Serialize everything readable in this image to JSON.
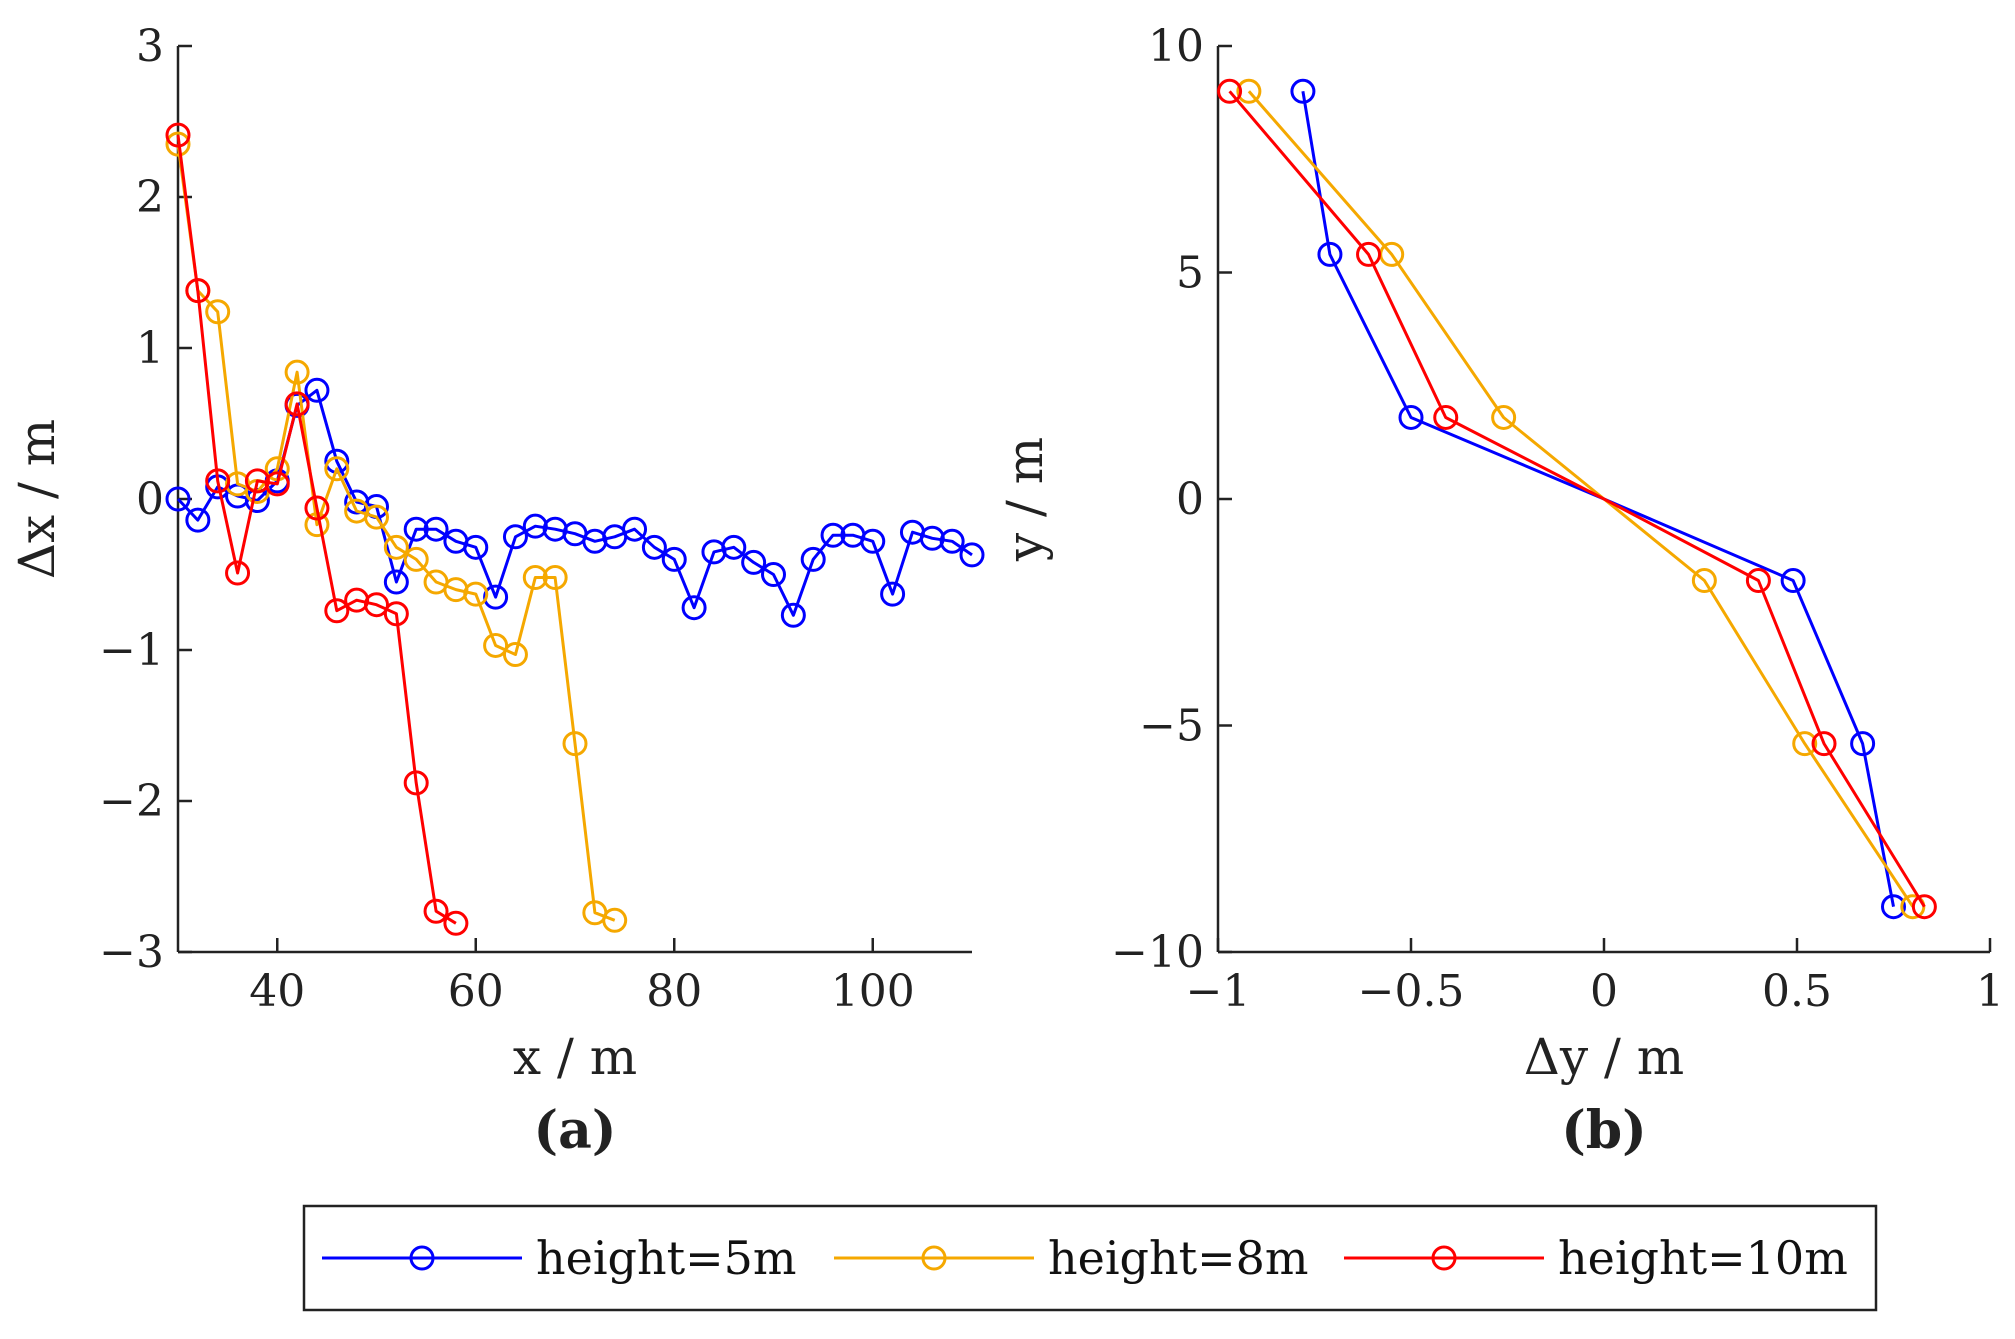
{
  "chart_data": [
    {
      "type": "line",
      "panel_label": "(a)",
      "xlabel": "x / m",
      "ylabel": "Δx / m",
      "xlim": [
        30,
        110
      ],
      "ylim": [
        -3,
        3
      ],
      "xticks": [
        40,
        60,
        80,
        100
      ],
      "yticks": [
        -3,
        -2,
        -1,
        0,
        1,
        2,
        3
      ],
      "xtick_labels": [
        "40",
        "60",
        "80",
        "100"
      ],
      "ytick_labels": [
        "−3",
        "−2",
        "−1",
        "0",
        "1",
        "2",
        "3"
      ],
      "series": [
        {
          "name": "height=5m",
          "color": "#0000ff",
          "x": [
            30,
            32,
            34,
            36,
            38,
            40,
            42,
            44,
            46,
            48,
            50,
            52,
            54,
            56,
            58,
            60,
            62,
            64,
            66,
            68,
            70,
            72,
            74,
            76,
            78,
            80,
            82,
            84,
            86,
            88,
            90,
            92,
            94,
            96,
            98,
            100,
            102,
            104,
            106,
            108,
            110
          ],
          "y": [
            0.0,
            -0.14,
            0.08,
            0.02,
            -0.01,
            0.12,
            0.62,
            0.72,
            0.25,
            -0.02,
            -0.05,
            -0.55,
            -0.2,
            -0.2,
            -0.28,
            -0.32,
            -0.65,
            -0.25,
            -0.18,
            -0.2,
            -0.23,
            -0.28,
            -0.25,
            -0.2,
            -0.32,
            -0.4,
            -0.72,
            -0.35,
            -0.32,
            -0.42,
            -0.5,
            -0.77,
            -0.4,
            -0.24,
            -0.24,
            -0.28,
            -0.63,
            -0.22,
            -0.26,
            -0.28,
            -0.37
          ]
        },
        {
          "name": "height=8m",
          "color": "#f5a800",
          "x": [
            30,
            32,
            34,
            36,
            38,
            40,
            42,
            44,
            46,
            48,
            50,
            52,
            54,
            56,
            58,
            60,
            62,
            64,
            66,
            68,
            70,
            72,
            74
          ],
          "y": [
            2.35,
            1.38,
            1.24,
            0.1,
            0.05,
            0.2,
            0.84,
            -0.17,
            0.2,
            -0.08,
            -0.12,
            -0.32,
            -0.4,
            -0.55,
            -0.6,
            -0.63,
            -0.97,
            -1.03,
            -0.52,
            -0.52,
            -1.62,
            -2.74,
            -2.79
          ]
        },
        {
          "name": "height=10m",
          "color": "#ff0000",
          "x": [
            30,
            32,
            34,
            36,
            38,
            40,
            42,
            44,
            46,
            48,
            50,
            52,
            54,
            56,
            58
          ],
          "y": [
            2.41,
            1.38,
            0.12,
            -0.49,
            0.12,
            0.1,
            0.63,
            -0.06,
            -0.74,
            -0.67,
            -0.7,
            -0.76,
            -1.88,
            -2.73,
            -2.81
          ]
        }
      ]
    },
    {
      "type": "line",
      "panel_label": "(b)",
      "xlabel": "Δy / m",
      "ylabel": "y / m",
      "xlim": [
        -1,
        1
      ],
      "ylim": [
        -10,
        10
      ],
      "xticks": [
        -1,
        -0.5,
        0,
        0.5,
        1
      ],
      "yticks": [
        -10,
        -5,
        0,
        5,
        10
      ],
      "xtick_labels": [
        "−1",
        "−0.5",
        "0",
        "0.5",
        "1"
      ],
      "ytick_labels": [
        "−10",
        "−5",
        "0",
        "5",
        "10"
      ],
      "series": [
        {
          "name": "height=5m",
          "color": "#0000ff",
          "x": [
            -0.78,
            -0.71,
            -0.5,
            0.0,
            0.49,
            0.67,
            0.75
          ],
          "y": [
            9.0,
            5.4,
            1.8,
            0.0,
            -1.8,
            -5.4,
            -9.0
          ],
          "markers": [
            true,
            true,
            true,
            false,
            true,
            true,
            true
          ]
        },
        {
          "name": "height=8m",
          "color": "#f5a800",
          "x": [
            -0.92,
            -0.55,
            -0.26,
            0.0,
            0.26,
            0.52,
            0.8
          ],
          "y": [
            9.0,
            5.4,
            1.8,
            0.0,
            -1.8,
            -5.4,
            -9.0
          ],
          "markers": [
            true,
            true,
            true,
            false,
            true,
            true,
            true
          ]
        },
        {
          "name": "height=10m",
          "color": "#ff0000",
          "x": [
            -0.97,
            -0.61,
            -0.41,
            0.0,
            0.4,
            0.57,
            0.83
          ],
          "y": [
            9.0,
            5.4,
            1.8,
            0.0,
            -1.8,
            -5.4,
            -9.0
          ],
          "markers": [
            true,
            true,
            true,
            false,
            true,
            true,
            true
          ]
        }
      ]
    }
  ],
  "legend": {
    "placement": "bottom-center",
    "entries": [
      "height=5m",
      "height=8m",
      "height=10m"
    ],
    "colors": [
      "#0000ff",
      "#f5a800",
      "#ff0000"
    ]
  }
}
